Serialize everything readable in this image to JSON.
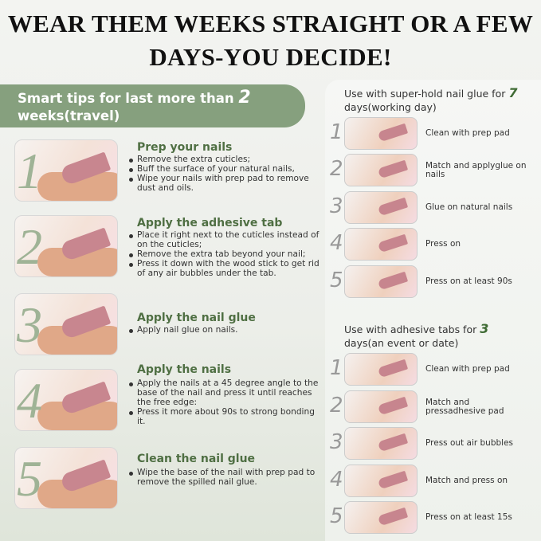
{
  "title": {
    "line1": "WEAR THEM WEEKS STRAIGHT OR A FEW",
    "line2": "DAYS-YOU DECIDE!"
  },
  "banner": {
    "text": "Smart tips for last more than ",
    "number": "2",
    "text2": "weeks(travel)"
  },
  "left_steps": [
    {
      "num": "1",
      "heading": "Prep your nails",
      "bullets": [
        "Remove the extra cuticles;",
        "Buff the surface of your natural nails,",
        "Wipe your nails with prep pad to remove dust and oils."
      ]
    },
    {
      "num": "2",
      "heading": "Apply the adhesive tab",
      "bullets": [
        "Place it right next to the cuticles instead of on the cuticles;",
        "Remove the extra tab beyond your nail;",
        "Press it down with the wood stick to get rid of any air bubbles under the tab."
      ]
    },
    {
      "num": "3",
      "heading": "Apply the nail glue",
      "bullets": [
        "Apply nail glue on nails."
      ]
    },
    {
      "num": "4",
      "heading": "Apply the nails",
      "bullets": [
        "Apply the nails at a 45 degree angle to the base of the nail and press it until reaches the free edge:",
        "Press it more about 90s to strong bonding it."
      ]
    },
    {
      "num": "5",
      "heading": "Clean the nail glue",
      "bullets": [
        "Wipe the base of the nail with prep pad to remove the spilled nail glue."
      ]
    }
  ],
  "glue_section": {
    "heading": "Use with super-hold nail glue for ",
    "number": "7",
    "heading2": "days(working day)",
    "steps": [
      {
        "num": "1",
        "text": "Clean with prep pad"
      },
      {
        "num": "2",
        "text": "Match and applyglue on nails"
      },
      {
        "num": "3",
        "text": "Glue on natural nails"
      },
      {
        "num": "4",
        "text": "Press on"
      },
      {
        "num": "5",
        "text": "Press on at least 90s"
      }
    ]
  },
  "tabs_section": {
    "heading": "Use with adhesive tabs for ",
    "number": "3",
    "heading2": "days(an event or date)",
    "steps": [
      {
        "num": "1",
        "text": "Clean with prep pad"
      },
      {
        "num": "2",
        "text": "Match and pressadhesive pad"
      },
      {
        "num": "3",
        "text": "Press out air bubbles"
      },
      {
        "num": "4",
        "text": "Match and press on"
      },
      {
        "num": "5",
        "text": "Press on at least 15s"
      }
    ]
  }
}
